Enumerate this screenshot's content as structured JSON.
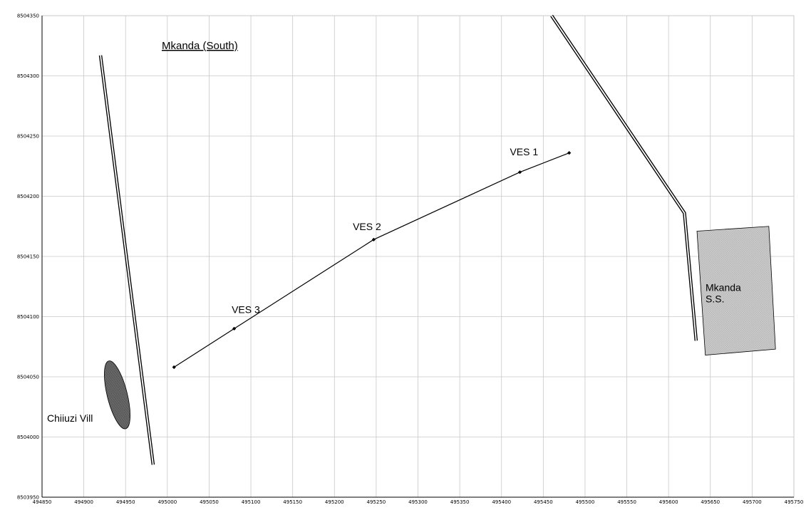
{
  "chart_data": {
    "type": "scatter",
    "title": "Mkanda (South)",
    "xlim": [
      494850,
      495750
    ],
    "ylim": [
      8503950,
      8504350
    ],
    "x_ticks": [
      494850,
      494900,
      494950,
      495000,
      495050,
      495100,
      495150,
      495200,
      495250,
      495300,
      495350,
      495400,
      495450,
      495500,
      495550,
      495600,
      495650,
      495700,
      495750
    ],
    "y_ticks": [
      8503950,
      8504000,
      8504050,
      8504100,
      8504150,
      8504200,
      8504250,
      8504300,
      8504350
    ],
    "grid": true,
    "series": [
      {
        "type": "line",
        "x": [
          495008,
          495080,
          495247,
          495422,
          495481
        ],
        "y": [
          8504058,
          8504090,
          8504164,
          8504220,
          8504236
        ]
      }
    ],
    "points": [
      {
        "label": "VES 1",
        "x": 495422,
        "y": 8504220
      },
      {
        "label": "VES 2",
        "x": 495247,
        "y": 8504164
      },
      {
        "label": "VES 3",
        "x": 495080,
        "y": 8504090
      }
    ],
    "point_labels": [
      {
        "text": "VES 1",
        "x": 495410,
        "y": 8504234
      },
      {
        "text": "VES 2",
        "x": 495222,
        "y": 8504172
      },
      {
        "text": "VES 3",
        "x": 495077,
        "y": 8504103
      }
    ],
    "roads": [
      {
        "x": [
          494920,
          494983
        ],
        "y": [
          8504317,
          8503977
        ]
      },
      {
        "x": [
          495460,
          495619,
          495633
        ],
        "y": [
          8504350,
          8504186,
          8504080
        ]
      }
    ],
    "areas": [
      {
        "label": "Mkanda S.S.",
        "label_lines": [
          "Mkanda",
          "S.S."
        ],
        "x": [
          495634,
          495720,
          495728,
          495644
        ],
        "y": [
          8504171,
          8504175,
          8504073,
          8504068
        ]
      }
    ],
    "ellipses": [
      {
        "label": "Chiiuzi Vill",
        "cx": 494940,
        "cy": 8504035,
        "rx": 12,
        "ry": 29,
        "rotation_deg": -14
      }
    ],
    "colors": {
      "grid": "#c8c8c8",
      "line": "#000000",
      "area_fill": "#c8c8c8",
      "ellipse_fill": "#6e6e6e"
    }
  }
}
